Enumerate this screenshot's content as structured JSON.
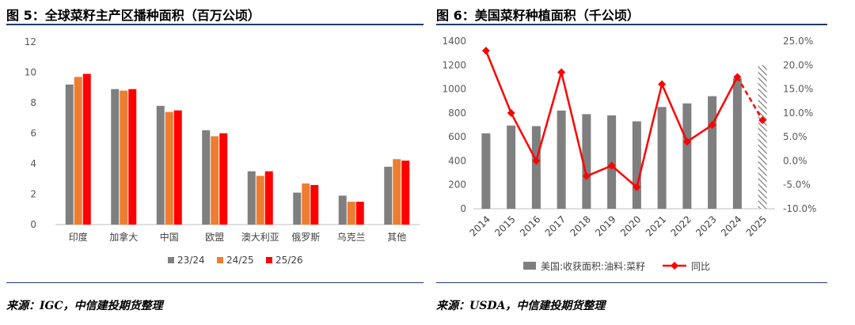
{
  "left": {
    "title": "图 5：全球菜籽主产区播种面积（百万公顷）",
    "source": "来源：IGC，中信建投期货整理",
    "chart_data": {
      "type": "bar",
      "categories": [
        "印度",
        "加拿大",
        "中国",
        "欧盟",
        "澳大利亚",
        "俄罗斯",
        "乌克兰",
        "其他"
      ],
      "series": [
        {
          "name": "23/24",
          "color": "#7f7f7f",
          "values": [
            9.2,
            8.9,
            7.8,
            6.2,
            3.5,
            2.1,
            1.9,
            3.8
          ]
        },
        {
          "name": "24/25",
          "color": "#ed7d31",
          "values": [
            9.7,
            8.8,
            7.4,
            5.8,
            3.2,
            2.7,
            1.5,
            4.3
          ]
        },
        {
          "name": "25/26",
          "color": "#ff0000",
          "values": [
            9.9,
            8.9,
            7.5,
            6.0,
            3.5,
            2.6,
            1.5,
            4.2
          ]
        }
      ],
      "ylim": [
        0,
        12
      ],
      "yticks": [
        0,
        2,
        4,
        6,
        8,
        10,
        12
      ],
      "legend": "bottom",
      "grid": false
    }
  },
  "right": {
    "title": "图 6：美国菜籽种植面积（千公顷）",
    "source": "来源：USDA，中信建投期货整理",
    "chart_data": {
      "type": "bar+line",
      "categories": [
        "2014",
        "2015",
        "2016",
        "2017",
        "2018",
        "2019",
        "2020",
        "2021",
        "2022",
        "2023",
        "2024",
        "2025"
      ],
      "bar_series": {
        "name": "美国:收获面积:油料:菜籽",
        "color": "#7f7f7f",
        "values": [
          630,
          695,
          690,
          820,
          790,
          780,
          730,
          850,
          880,
          940,
          1090,
          1200
        ],
        "hatched_last": true
      },
      "line_series": {
        "name": "同比",
        "color": "#ff0000",
        "values": [
          23.0,
          10.0,
          0.0,
          18.5,
          -3.2,
          -1.0,
          -5.5,
          16.0,
          4.0,
          7.5,
          17.5,
          8.5
        ],
        "dashed_last": true
      },
      "y_left": {
        "ylim": [
          0,
          1400
        ],
        "ticks": [
          0,
          200,
          400,
          600,
          800,
          1000,
          1200,
          1400
        ]
      },
      "y_right": {
        "ylim": [
          -10,
          25
        ],
        "ticks": [
          "25.0%",
          "20.0%",
          "15.0%",
          "10.0%",
          "5.0%",
          "0.0%",
          "-5.0%",
          "-10.0%"
        ]
      },
      "legend": "bottom",
      "grid": false
    }
  }
}
